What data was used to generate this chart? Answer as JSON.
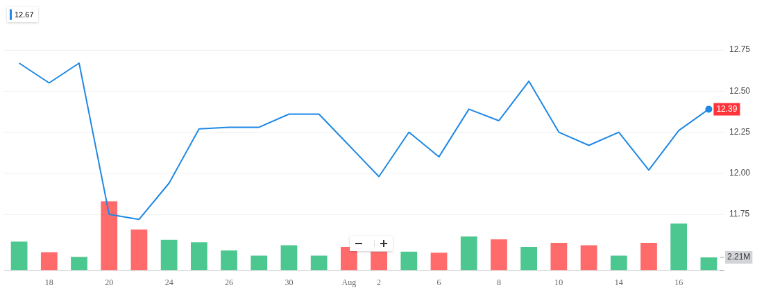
{
  "chart_data": {
    "type": "line",
    "categories": [
      null,
      "18",
      null,
      "20",
      null,
      "24",
      null,
      "26",
      null,
      "30",
      null,
      "Aug",
      "2",
      null,
      "6",
      null,
      "8",
      null,
      "10",
      null,
      "14",
      null,
      "16",
      null
    ],
    "series": [
      {
        "name": "12.67",
        "color": "#1e88e5",
        "values": [
          12.67,
          12.55,
          12.67,
          11.75,
          11.72,
          11.94,
          12.27,
          12.28,
          12.28,
          12.36,
          12.36,
          12.17,
          11.98,
          12.25,
          12.1,
          12.39,
          12.32,
          12.56,
          12.25,
          12.17,
          12.25,
          12.02,
          12.26,
          12.39
        ],
        "value_labels": [
          null,
          null,
          null,
          null,
          null,
          null,
          null,
          null,
          null,
          null,
          null,
          null,
          null,
          null,
          null,
          null,
          null,
          null,
          null,
          null,
          null,
          null,
          null,
          "12.39"
        ]
      },
      {
        "type": "bar",
        "axis": "y2",
        "colors": [
          "#4cc790",
          "#ff6b6b",
          "#4cc790",
          "#ff6b6b",
          "#ff6b6b",
          "#4cc790",
          "#4cc790",
          "#4cc790",
          "#4cc790",
          "#4cc790",
          "#4cc790",
          "#ff6b6b",
          "#ff6b6b",
          "#4cc790",
          "#ff6b6b",
          "#4cc790",
          "#ff6b6b",
          "#4cc790",
          "#ff6b6b",
          "#ff6b6b",
          "#4cc790",
          "#ff6b6b",
          "#4cc790",
          "#4cc790"
        ],
        "values": [
          4.9,
          3.1,
          2.3,
          11.8,
          7.0,
          5.2,
          4.8,
          3.4,
          2.5,
          4.3,
          2.5,
          4.0,
          3.2,
          3.2,
          3.0,
          5.8,
          5.3,
          4.0,
          4.7,
          4.3,
          2.5,
          4.7,
          8.0,
          2.21
        ]
      }
    ],
    "ylim": [
      11.41,
      12.99
    ],
    "yticks": [
      11.75,
      {
        "value": 12.0,
        "label": "12.00"
      },
      12.25,
      {
        "value": 12.5,
        "label": "12.50"
      },
      12.75
    ],
    "y2lim": [
      0,
      44.5
    ],
    "y2ticks": [
      {
        "value": 0,
        "label": null
      },
      {
        "value": 2.21,
        "label": "2.21M"
      }
    ],
    "grid": "y",
    "legend": "top left",
    "marker": "none"
  }
}
